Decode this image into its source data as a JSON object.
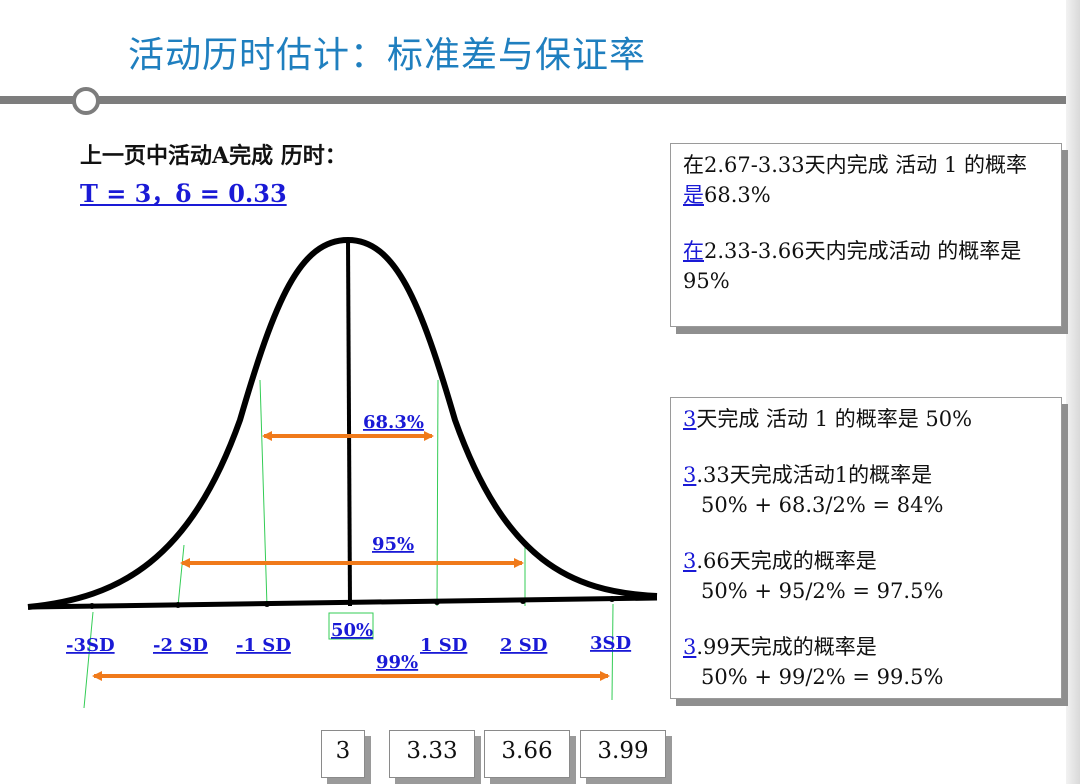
{
  "title": "活动历时估计：标准差与保证率",
  "intro": {
    "line": "上一页中活动A完成 历时：",
    "formula": "T = 3，δ = 0.33"
  },
  "curve_labels": {
    "p683": "68.3%",
    "p95": "95%",
    "p50": "50%",
    "p99": "99%",
    "m3sd": "-3SD",
    "m2sd": "-2 SD",
    "m1sd": "-1 SD",
    "p1sd": "1 SD",
    "p2sd": "2 SD",
    "p3sd": "3SD"
  },
  "box1": {
    "line1": "在2.67-3.33天内完成 活动 1 的概率",
    "line2a": "是",
    "line2b": "68.3%",
    "line3a": "在",
    "line3b": "2.33-3.66天内完成活动 的概率是",
    "line4": "95%"
  },
  "box2": {
    "l1a": "3",
    "l1b": "天完成 活动 1 的概率是   50%",
    "l2a": "3",
    "l2b": ".33天完成活动1的概率是",
    "l2c": "50% + 68.3/2% = 84%",
    "l3a": "3",
    "l3b": ".66天完成的概率是",
    "l3c": "50% + 95/2% = 97.5%",
    "l4a": "3",
    "l4b": ".99天完成的概率是",
    "l4c": "50% + 99/2% = 99.5%"
  },
  "value_boxes": [
    "3",
    "3.33",
    "3.66",
    "3.99"
  ],
  "colors": {
    "title": "#1f7fbf",
    "arrow": "#f07a1a",
    "label": "#1a1ad6",
    "guide": "#33cc55"
  }
}
